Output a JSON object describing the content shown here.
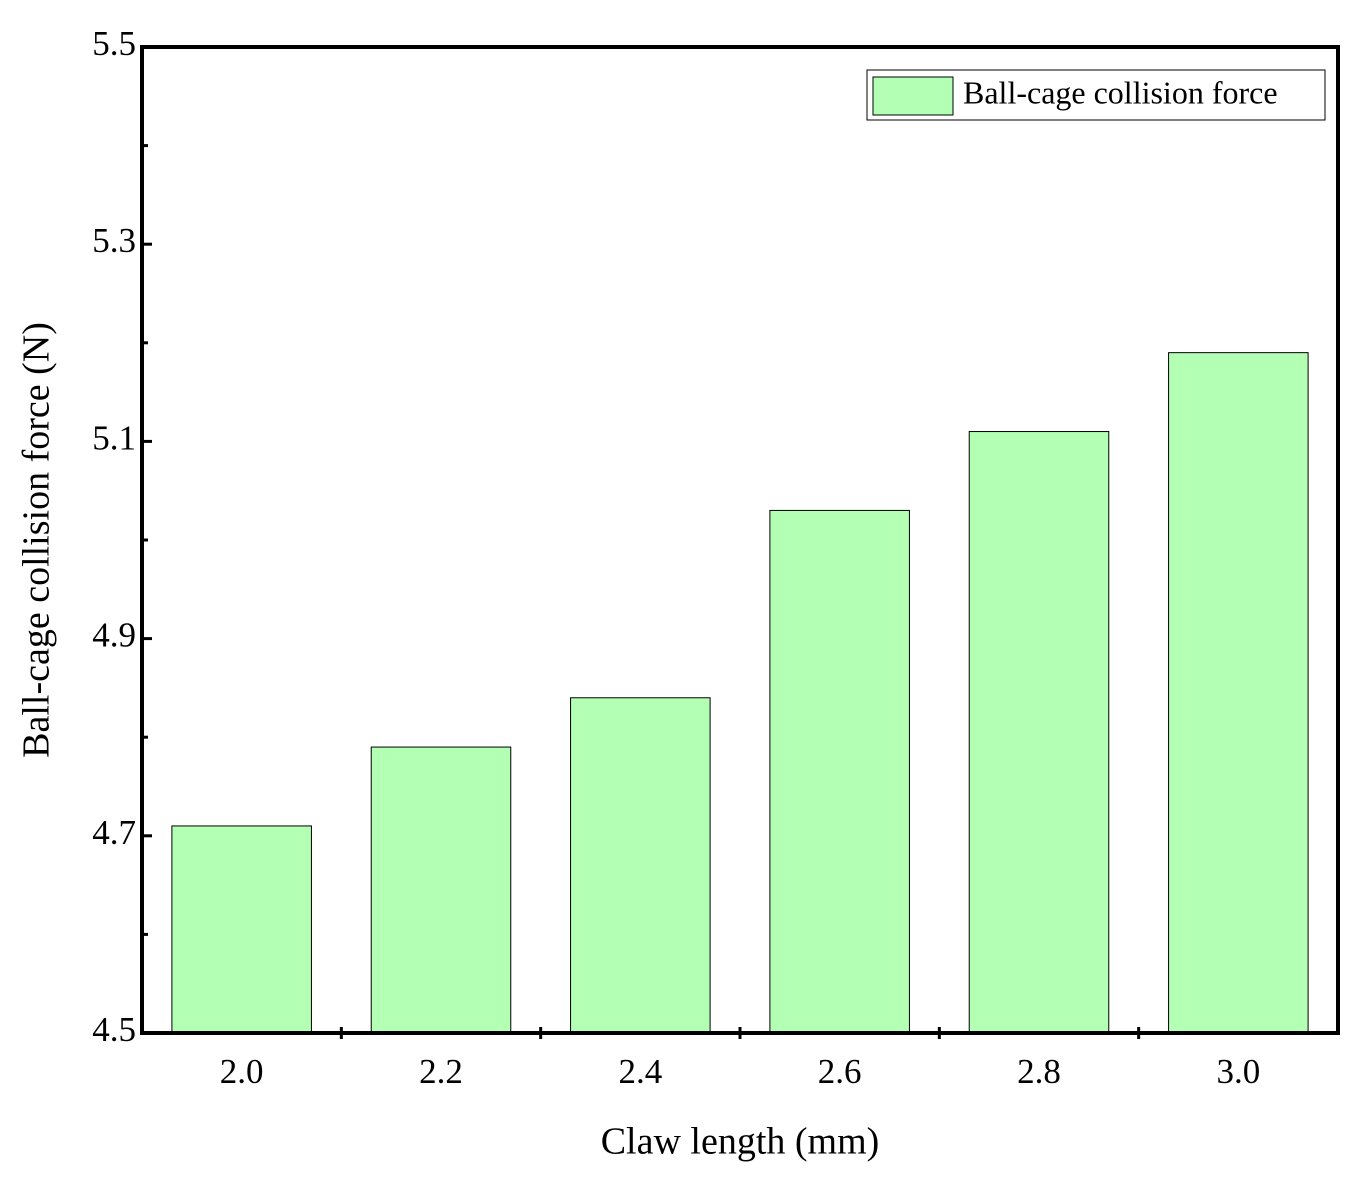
{
  "chart_data": {
    "type": "bar",
    "x_label": "Claw length (mm)",
    "y_label": "Ball-cage collision force (N)",
    "categories": [
      "2.0",
      "2.2",
      "2.4",
      "2.6",
      "2.8",
      "3.0"
    ],
    "series": [
      {
        "name": "Ball-cage collision force",
        "color": "#b3ffb3",
        "values": [
          4.71,
          4.79,
          4.84,
          5.03,
          5.11,
          5.19
        ]
      }
    ],
    "ylim": [
      4.5,
      5.5
    ],
    "yticks": [
      4.5,
      4.7,
      4.9,
      5.1,
      5.3,
      5.5
    ],
    "yminorticks": [
      4.6,
      4.8,
      5.0,
      5.2,
      5.4
    ],
    "grid": false,
    "legend": "upper right"
  }
}
